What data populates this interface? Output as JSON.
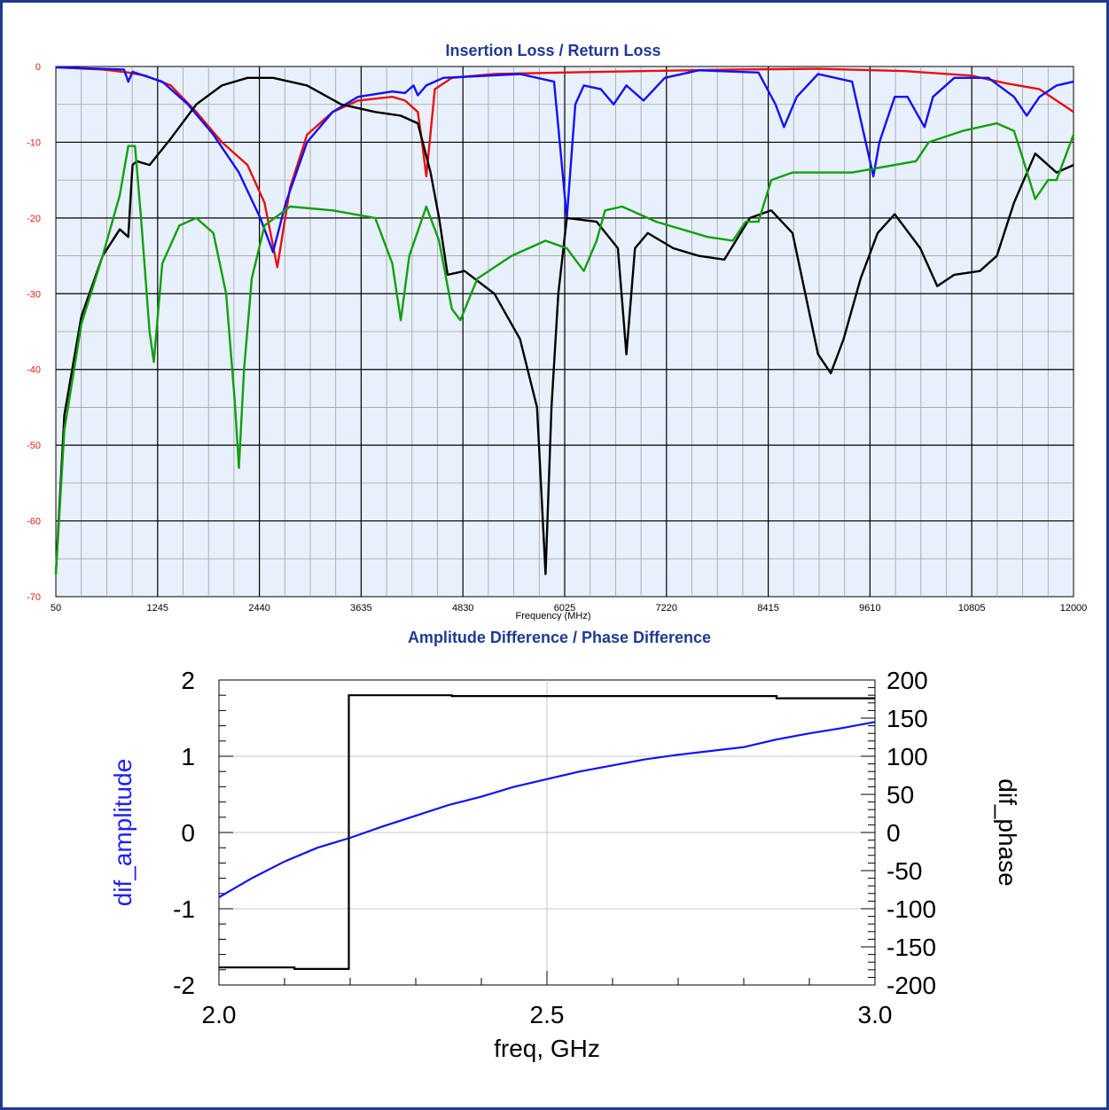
{
  "chart_data": [
    {
      "type": "line",
      "title": "Insertion Loss / Return Loss",
      "xlabel": "Frequency (MHz)",
      "ylabel": "",
      "xlim": [
        50,
        12000
      ],
      "ylim": [
        -70,
        0
      ],
      "x_ticks": [
        "50",
        "1245",
        "2440",
        "3635",
        "4830",
        "6025",
        "7220",
        "8415",
        "9610",
        "10805",
        "12000"
      ],
      "y_ticks": [
        "0",
        "-10",
        "-20",
        "-30",
        "-40",
        "-50",
        "-60",
        "-70"
      ],
      "grid": true,
      "colors": {
        "red": "#e81010",
        "blue": "#1010ff",
        "black": "#000000",
        "green": "#10a010",
        "background": "#e8f0fb"
      },
      "series": [
        {
          "color": "#e81010",
          "points": [
            [
              50,
              -0.1
            ],
            [
              600,
              -0.4
            ],
            [
              900,
              -0.8
            ],
            [
              1100,
              -1.2
            ],
            [
              1400,
              -2.5
            ],
            [
              1700,
              -6
            ],
            [
              2000,
              -10
            ],
            [
              2300,
              -13
            ],
            [
              2500,
              -18
            ],
            [
              2650,
              -26.5
            ],
            [
              2800,
              -16
            ],
            [
              3000,
              -9
            ],
            [
              3300,
              -6
            ],
            [
              3600,
              -4.5
            ],
            [
              4000,
              -4
            ],
            [
              4150,
              -4.5
            ],
            [
              4300,
              -6
            ],
            [
              4350,
              -10
            ],
            [
              4400,
              -14.5
            ],
            [
              4500,
              -3
            ],
            [
              4700,
              -1.5
            ],
            [
              5200,
              -1
            ],
            [
              6000,
              -0.8
            ],
            [
              7000,
              -0.6
            ],
            [
              8000,
              -0.4
            ],
            [
              9000,
              -0.3
            ],
            [
              10000,
              -0.6
            ],
            [
              10800,
              -1.2
            ],
            [
              11200,
              -2.2
            ],
            [
              11600,
              -3
            ],
            [
              11800,
              -4.5
            ],
            [
              12000,
              -6
            ]
          ]
        },
        {
          "color": "#1010ff",
          "points": [
            [
              50,
              -0.1
            ],
            [
              850,
              -0.4
            ],
            [
              900,
              -2
            ],
            [
              950,
              -0.7
            ],
            [
              1300,
              -2
            ],
            [
              1600,
              -5
            ],
            [
              1900,
              -9
            ],
            [
              2200,
              -14
            ],
            [
              2450,
              -20
            ],
            [
              2600,
              -24.5
            ],
            [
              2750,
              -18
            ],
            [
              3000,
              -10
            ],
            [
              3300,
              -6
            ],
            [
              3600,
              -4
            ],
            [
              4000,
              -3.3
            ],
            [
              4150,
              -3.5
            ],
            [
              4250,
              -2.5
            ],
            [
              4300,
              -3.8
            ],
            [
              4400,
              -2.5
            ],
            [
              4600,
              -1.5
            ],
            [
              5500,
              -1
            ],
            [
              5900,
              -2
            ],
            [
              6050,
              -20
            ],
            [
              6150,
              -5
            ],
            [
              6250,
              -2.5
            ],
            [
              6450,
              -3
            ],
            [
              6600,
              -5
            ],
            [
              6750,
              -2.5
            ],
            [
              6950,
              -4.5
            ],
            [
              7200,
              -1.5
            ],
            [
              7600,
              -0.5
            ],
            [
              8300,
              -0.8
            ],
            [
              8500,
              -5
            ],
            [
              8600,
              -8
            ],
            [
              8750,
              -4
            ],
            [
              9000,
              -1
            ],
            [
              9400,
              -2
            ],
            [
              9560,
              -10
            ],
            [
              9650,
              -14.5
            ],
            [
              9720,
              -10
            ],
            [
              9900,
              -4
            ],
            [
              10050,
              -4
            ],
            [
              10150,
              -6
            ],
            [
              10250,
              -8
            ],
            [
              10350,
              -4
            ],
            [
              10600,
              -1.5
            ],
            [
              11000,
              -1.5
            ],
            [
              11300,
              -4
            ],
            [
              11450,
              -6.5
            ],
            [
              11600,
              -4
            ],
            [
              11800,
              -2.5
            ],
            [
              12000,
              -2
            ]
          ]
        },
        {
          "color": "#000000",
          "points": [
            [
              50,
              -67
            ],
            [
              150,
              -46
            ],
            [
              350,
              -33
            ],
            [
              600,
              -25
            ],
            [
              800,
              -21.5
            ],
            [
              900,
              -22.5
            ],
            [
              950,
              -13
            ],
            [
              1000,
              -12.5
            ],
            [
              1150,
              -13
            ],
            [
              1400,
              -9.5
            ],
            [
              1700,
              -5
            ],
            [
              2000,
              -2.5
            ],
            [
              2300,
              -1.5
            ],
            [
              2600,
              -1.5
            ],
            [
              3000,
              -2.5
            ],
            [
              3400,
              -5
            ],
            [
              3800,
              -6
            ],
            [
              4100,
              -6.5
            ],
            [
              4300,
              -7.5
            ],
            [
              4450,
              -14
            ],
            [
              4550,
              -20
            ],
            [
              4650,
              -27.5
            ],
            [
              4850,
              -27
            ],
            [
              5200,
              -30
            ],
            [
              5500,
              -36
            ],
            [
              5700,
              -45
            ],
            [
              5800,
              -67
            ],
            [
              5870,
              -45
            ],
            [
              5950,
              -30
            ],
            [
              6050,
              -20
            ],
            [
              6400,
              -20.5
            ],
            [
              6650,
              -24
            ],
            [
              6750,
              -38
            ],
            [
              6850,
              -24
            ],
            [
              7000,
              -22
            ],
            [
              7300,
              -24
            ],
            [
              7600,
              -25
            ],
            [
              7900,
              -25.5
            ],
            [
              8200,
              -20
            ],
            [
              8450,
              -19
            ],
            [
              8700,
              -22
            ],
            [
              9000,
              -38
            ],
            [
              9150,
              -40.5
            ],
            [
              9300,
              -36
            ],
            [
              9500,
              -28
            ],
            [
              9700,
              -22
            ],
            [
              9900,
              -19.5
            ],
            [
              10200,
              -24
            ],
            [
              10400,
              -29
            ],
            [
              10600,
              -27.5
            ],
            [
              10900,
              -27
            ],
            [
              11100,
              -25
            ],
            [
              11300,
              -18
            ],
            [
              11550,
              -11.5
            ],
            [
              11800,
              -14
            ],
            [
              12000,
              -13
            ]
          ]
        },
        {
          "color": "#10a010",
          "points": [
            [
              50,
              -67
            ],
            [
              150,
              -48
            ],
            [
              350,
              -34
            ],
            [
              600,
              -25
            ],
            [
              800,
              -17
            ],
            [
              900,
              -10.5
            ],
            [
              980,
              -10.5
            ],
            [
              1050,
              -20
            ],
            [
              1150,
              -35
            ],
            [
              1200,
              -39
            ],
            [
              1300,
              -26
            ],
            [
              1500,
              -21
            ],
            [
              1700,
              -20
            ],
            [
              1900,
              -22
            ],
            [
              2050,
              -30
            ],
            [
              2150,
              -44
            ],
            [
              2200,
              -53
            ],
            [
              2260,
              -40
            ],
            [
              2350,
              -28
            ],
            [
              2500,
              -21
            ],
            [
              2800,
              -18.5
            ],
            [
              3300,
              -19
            ],
            [
              3800,
              -20
            ],
            [
              4000,
              -26
            ],
            [
              4100,
              -33.5
            ],
            [
              4200,
              -25
            ],
            [
              4400,
              -18.5
            ],
            [
              4550,
              -23
            ],
            [
              4700,
              -32
            ],
            [
              4800,
              -33.5
            ],
            [
              5000,
              -28
            ],
            [
              5400,
              -25
            ],
            [
              5800,
              -23
            ],
            [
              6050,
              -24
            ],
            [
              6250,
              -27
            ],
            [
              6400,
              -23
            ],
            [
              6500,
              -19
            ],
            [
              6700,
              -18.5
            ],
            [
              7100,
              -20.5
            ],
            [
              7700,
              -22.5
            ],
            [
              8000,
              -23
            ],
            [
              8150,
              -20.5
            ],
            [
              8300,
              -20.5
            ],
            [
              8450,
              -15
            ],
            [
              8700,
              -14
            ],
            [
              9400,
              -14
            ],
            [
              9650,
              -13.5
            ],
            [
              9900,
              -13
            ],
            [
              10150,
              -12.5
            ],
            [
              10300,
              -10
            ],
            [
              10700,
              -8.5
            ],
            [
              11100,
              -7.5
            ],
            [
              11300,
              -8.5
            ],
            [
              11400,
              -12
            ],
            [
              11550,
              -17.5
            ],
            [
              11700,
              -15
            ],
            [
              11800,
              -15
            ],
            [
              12000,
              -9
            ]
          ]
        }
      ]
    },
    {
      "type": "line",
      "title": "Amplitude Difference / Phase Difference",
      "xlabel": "freq, GHz",
      "ylabel": "dif_amplitude",
      "y2label": "dif_phase",
      "xlim": [
        2.0,
        3.0
      ],
      "ylim": [
        -2,
        2
      ],
      "y2lim": [
        -200,
        200
      ],
      "x_ticks": [
        "2.0",
        "2.5",
        "3.0"
      ],
      "y_ticks": [
        "2",
        "1",
        "0",
        "-1",
        "-2"
      ],
      "y2_ticks": [
        "200",
        "150",
        "100",
        "50",
        "0",
        "-50",
        "-100",
        "-150",
        "-200"
      ],
      "grid": true,
      "series": [
        {
          "name": "dif_amplitude",
          "axis": "left",
          "color": "#1010ff",
          "points": [
            [
              2.0,
              -0.85
            ],
            [
              2.05,
              -0.6
            ],
            [
              2.1,
              -0.38
            ],
            [
              2.15,
              -0.2
            ],
            [
              2.2,
              -0.07
            ],
            [
              2.25,
              0.08
            ],
            [
              2.3,
              0.22
            ],
            [
              2.35,
              0.36
            ],
            [
              2.4,
              0.47
            ],
            [
              2.45,
              0.6
            ],
            [
              2.5,
              0.7
            ],
            [
              2.55,
              0.8
            ],
            [
              2.6,
              0.88
            ],
            [
              2.65,
              0.96
            ],
            [
              2.7,
              1.02
            ],
            [
              2.75,
              1.07
            ],
            [
              2.8,
              1.12
            ],
            [
              2.85,
              1.22
            ],
            [
              2.9,
              1.3
            ],
            [
              2.95,
              1.37
            ],
            [
              3.0,
              1.45
            ]
          ]
        },
        {
          "name": "dif_phase",
          "axis": "right",
          "color": "#000000",
          "points": [
            [
              2.0,
              -177
            ],
            [
              2.115,
              -177
            ],
            [
              2.115,
              -179
            ],
            [
              2.198,
              -179
            ],
            [
              2.198,
              180
            ],
            [
              2.355,
              180
            ],
            [
              2.355,
              179
            ],
            [
              2.85,
              179
            ],
            [
              2.85,
              176
            ],
            [
              3.0,
              176
            ]
          ]
        }
      ]
    }
  ]
}
